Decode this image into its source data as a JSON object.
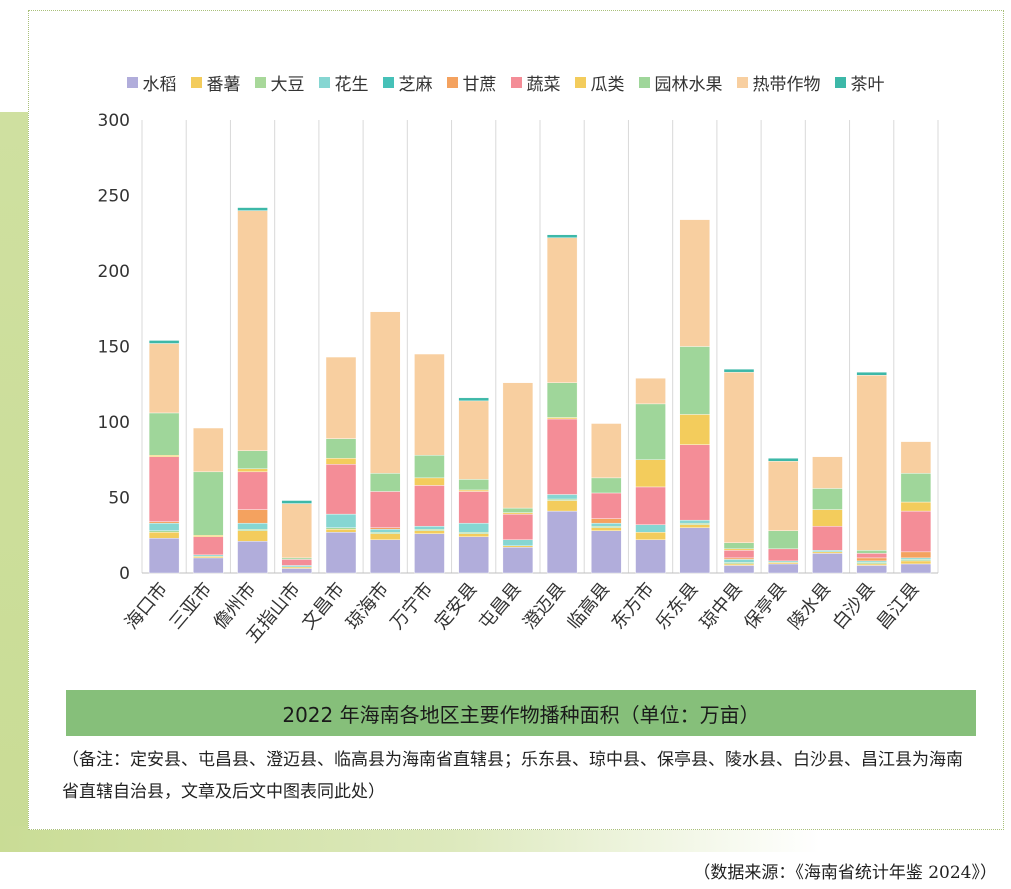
{
  "chart_data": {
    "type": "bar",
    "stacked": true,
    "ylim": [
      0,
      300
    ],
    "yticks": [
      0,
      50,
      100,
      150,
      200,
      250,
      300
    ],
    "categories": [
      "海口市",
      "三亚市",
      "儋州市",
      "五指山市",
      "文昌市",
      "琼海市",
      "万宁市",
      "定安县",
      "屯昌县",
      "澄迈县",
      "临高县",
      "东方市",
      "乐东县",
      "琼中县",
      "保亭县",
      "陵水县",
      "白沙县",
      "昌江县"
    ],
    "series": [
      {
        "name": "水稻",
        "color": "#b1addb",
        "values": [
          23,
          10,
          21,
          3,
          27,
          22,
          26,
          24,
          17,
          41,
          28,
          22,
          30,
          5,
          6,
          13,
          5,
          6
        ]
      },
      {
        "name": "番薯",
        "color": "#f3cc5c",
        "values": [
          4,
          1,
          7,
          1,
          2,
          4,
          2,
          2,
          1,
          7,
          2,
          5,
          2,
          1,
          1,
          1,
          1,
          2
        ]
      },
      {
        "name": "大豆",
        "color": "#a8d89a",
        "values": [
          1,
          0,
          1,
          0,
          1,
          1,
          1,
          1,
          0,
          1,
          1,
          0,
          1,
          1,
          0,
          0,
          1,
          1
        ]
      },
      {
        "name": "花生",
        "color": "#86d6d2",
        "values": [
          5,
          1,
          4,
          1,
          9,
          2,
          2,
          6,
          4,
          3,
          2,
          5,
          2,
          2,
          1,
          1,
          1,
          1
        ]
      },
      {
        "name": "芝麻",
        "color": "#46c1b8",
        "values": [
          0,
          0,
          0,
          0,
          0,
          0,
          0,
          0,
          0,
          0,
          0,
          0,
          0,
          0,
          0,
          0,
          0,
          0
        ]
      },
      {
        "name": "甘蔗",
        "color": "#f4a25f",
        "values": [
          1,
          0,
          9,
          0,
          0,
          1,
          0,
          0,
          0,
          0,
          3,
          0,
          0,
          1,
          0,
          0,
          2,
          4
        ]
      },
      {
        "name": "蔬菜",
        "color": "#f48d97",
        "values": [
          43,
          12,
          25,
          4,
          33,
          24,
          27,
          21,
          17,
          50,
          17,
          25,
          50,
          5,
          8,
          16,
          3,
          27
        ]
      },
      {
        "name": "瓜类",
        "color": "#f3cc5c",
        "values": [
          1,
          1,
          2,
          0,
          4,
          0,
          5,
          1,
          1,
          1,
          0,
          18,
          20,
          1,
          0,
          11,
          0,
          6
        ]
      },
      {
        "name": "园林水果",
        "color": "#9fd69a",
        "values": [
          28,
          42,
          12,
          1,
          13,
          12,
          15,
          7,
          3,
          23,
          10,
          37,
          45,
          4,
          12,
          14,
          2,
          19
        ]
      },
      {
        "name": "热带作物",
        "color": "#f8cfa0",
        "values": [
          46,
          29,
          159,
          36,
          54,
          107,
          67,
          52,
          83,
          96,
          36,
          17,
          84,
          113,
          46,
          21,
          116,
          21
        ]
      },
      {
        "name": "茶叶",
        "color": "#3db8a8",
        "values": [
          2,
          0,
          2,
          2,
          0,
          0,
          0,
          2,
          0,
          2,
          0,
          0,
          0,
          2,
          2,
          0,
          2,
          0
        ]
      }
    ],
    "title": "2022 年海南各地区主要作物播种面积（单位：万亩）",
    "note": "（备注：定安县、屯昌县、澄迈县、临高县为海南省直辖县；乐东县、琼中县、保亭县、陵水县、白沙县、昌江县为海南省直辖自治县，文章及后文中图表同此处）",
    "source": "（数据来源：《海南省统计年鉴 2024》）"
  }
}
